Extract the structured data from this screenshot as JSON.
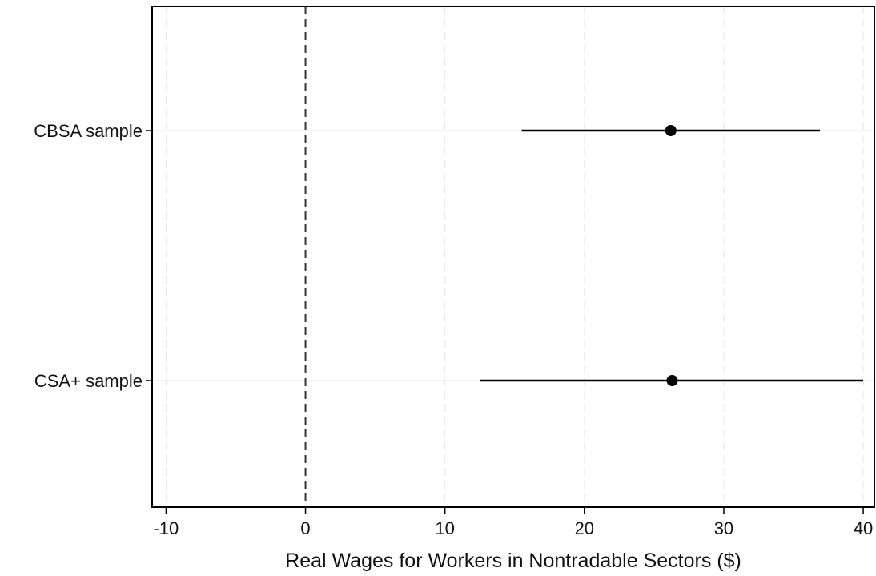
{
  "chart_data": {
    "type": "scatter",
    "subtype": "coefficient-plot",
    "title": "",
    "xlabel": "Real Wages for Workers in Nontradable Sectors ($)",
    "ylabel": "",
    "xlim": [
      -11,
      40.8
    ],
    "xticks": [
      -10,
      0,
      10,
      20,
      30,
      40
    ],
    "xtick_labels": [
      "-10",
      "0",
      "10",
      "20",
      "30",
      "40"
    ],
    "reference_line": {
      "x": 0,
      "style": "dashed"
    },
    "grid": {
      "vertical": true,
      "horizontal": true,
      "style": "light"
    },
    "categories": [
      "CBSA sample",
      "CSA+ sample"
    ],
    "series": [
      {
        "points": [
          {
            "label": "CBSA sample",
            "estimate": 26.2,
            "ci_low": 15.5,
            "ci_high": 36.9
          },
          {
            "label": "CSA+ sample",
            "estimate": 26.3,
            "ci_low": 12.5,
            "ci_high": 40.0
          }
        ]
      }
    ],
    "colors": {
      "marker": "#000000",
      "ci_line": "#000000",
      "grid": "#e6e6e6",
      "frame": "#000000"
    }
  }
}
